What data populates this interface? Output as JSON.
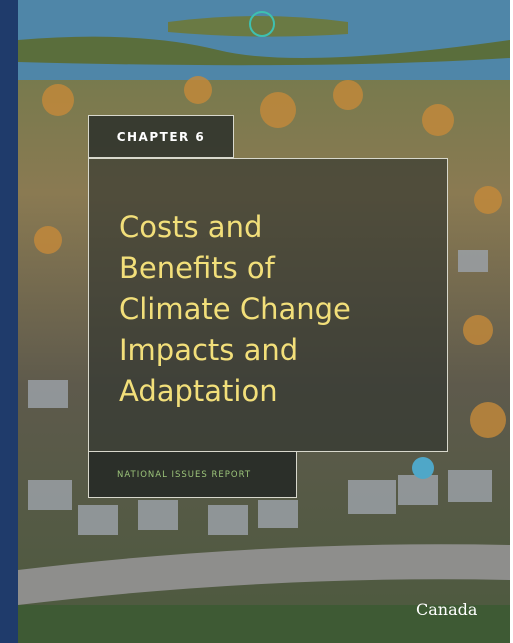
{
  "cover": {
    "chapter": "CHAPTER 6",
    "title_lines": [
      "Costs and",
      "Benefits of",
      "Climate Change",
      "Impacts and",
      "Adaptation"
    ],
    "report": "NATIONAL ISSUES REPORT",
    "wordmark": "Canada"
  }
}
